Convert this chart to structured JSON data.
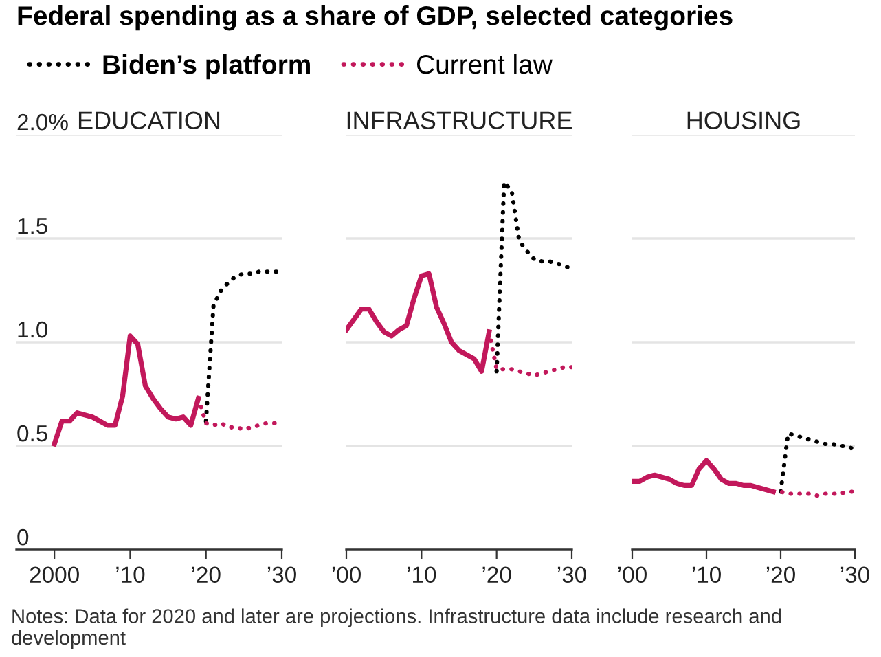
{
  "chart_data": [
    {
      "type": "line",
      "title": "Federal spending as a share of GDP, selected categories",
      "subtitle": "EDUCATION",
      "legend": "top",
      "grid": "y",
      "tick_labels": "xy",
      "xlim": [
        1995,
        2030
      ],
      "xticks": [
        {
          "value": 2000,
          "label": "2000"
        },
        {
          "value": 2010,
          "label": "’10"
        },
        {
          "value": 2020,
          "label": "’20"
        },
        {
          "value": 2030,
          "label": "’30"
        }
      ],
      "ylim": [
        0,
        2.0
      ],
      "yticks": [
        0,
        0.5,
        {
          "value": 1.0,
          "label": "1.0"
        },
        1.5,
        {
          "value": 2.0,
          "label": "2.0%"
        }
      ],
      "annotations": [
        "Notes: Data for 2020 and later are projections. Infrastructure data include research and development"
      ],
      "series": [
        {
          "color": "#c2185b",
          "line_style": "solid",
          "x": [
            2000,
            2001,
            2002,
            2003,
            2004,
            2005,
            2006,
            2007,
            2008,
            2009,
            2010,
            2011,
            2012,
            2013,
            2014,
            2015,
            2016,
            2017,
            2018,
            2019
          ],
          "values": [
            0.51,
            0.62,
            0.62,
            0.66,
            0.65,
            0.64,
            0.62,
            0.6,
            0.6,
            0.74,
            1.03,
            0.99,
            0.79,
            0.73,
            0.68,
            0.64,
            0.63,
            0.64,
            0.6,
            0.73
          ]
        },
        {
          "name": "Biden’s platform",
          "color": "#000000",
          "line_style": "dotted",
          "x": [
            2020,
            2021,
            2022,
            2023,
            2024,
            2025,
            2026,
            2027,
            2028,
            2029,
            2030
          ],
          "values": [
            0.62,
            1.18,
            1.25,
            1.29,
            1.32,
            1.33,
            1.33,
            1.34,
            1.34,
            1.34,
            1.34
          ]
        },
        {
          "name": "Current law",
          "color": "#c2185b",
          "line_style": "dotted",
          "x": [
            2019,
            2020,
            2021,
            2022,
            2023,
            2024,
            2025,
            2026,
            2027,
            2028,
            2029,
            2030
          ],
          "values": [
            0.73,
            0.61,
            0.6,
            0.61,
            0.59,
            0.59,
            0.58,
            0.59,
            0.6,
            0.61,
            0.61,
            0.61
          ]
        }
      ]
    },
    {
      "type": "line",
      "subtitle": "INFRASTRUCTURE",
      "grid": "y",
      "tick_labels": "x",
      "xlim": [
        2000,
        2030
      ],
      "xticks": [
        {
          "value": 2000,
          "label": "’00"
        },
        {
          "value": 2010,
          "label": "’10"
        },
        {
          "value": 2020,
          "label": "’20"
        },
        {
          "value": 2030,
          "label": "’30"
        }
      ],
      "ylim": [
        0,
        2.0
      ],
      "yticks": [
        0,
        0.5,
        1.0,
        1.5,
        2.0
      ],
      "series": [
        {
          "color": "#c2185b",
          "line_style": "solid",
          "x": [
            2000,
            2001,
            2002,
            2003,
            2004,
            2005,
            2006,
            2007,
            2008,
            2009,
            2010,
            2011,
            2012,
            2013,
            2014,
            2015,
            2016,
            2017,
            2018,
            2019
          ],
          "values": [
            1.06,
            1.11,
            1.16,
            1.16,
            1.1,
            1.05,
            1.03,
            1.06,
            1.08,
            1.21,
            1.32,
            1.33,
            1.17,
            1.09,
            1.0,
            0.96,
            0.94,
            0.92,
            0.86,
            1.05
          ]
        },
        {
          "color": "#000000",
          "line_style": "dotted",
          "x": [
            2020,
            2021,
            2022,
            2023,
            2024,
            2025,
            2026,
            2027,
            2028,
            2029,
            2030
          ],
          "values": [
            0.86,
            1.77,
            1.73,
            1.49,
            1.44,
            1.4,
            1.39,
            1.39,
            1.38,
            1.37,
            1.35
          ]
        },
        {
          "color": "#c2185b",
          "line_style": "dotted",
          "x": [
            2019,
            2020,
            2021,
            2022,
            2023,
            2024,
            2025,
            2026,
            2027,
            2028,
            2029,
            2030
          ],
          "values": [
            1.05,
            0.87,
            0.87,
            0.87,
            0.86,
            0.85,
            0.84,
            0.85,
            0.86,
            0.87,
            0.88,
            0.88
          ]
        }
      ]
    },
    {
      "type": "line",
      "subtitle": "HOUSING",
      "grid": "y",
      "tick_labels": "x",
      "xlim": [
        2000,
        2030
      ],
      "xticks": [
        {
          "value": 2000,
          "label": "’00"
        },
        {
          "value": 2010,
          "label": "’10"
        },
        {
          "value": 2020,
          "label": "’20"
        },
        {
          "value": 2030,
          "label": "’30"
        }
      ],
      "ylim": [
        0,
        2.0
      ],
      "yticks": [
        0,
        0.5,
        1.0,
        1.5,
        2.0
      ],
      "series": [
        {
          "color": "#c2185b",
          "line_style": "solid",
          "x": [
            2000,
            2001,
            2002,
            2003,
            2004,
            2005,
            2006,
            2007,
            2008,
            2009,
            2010,
            2011,
            2012,
            2013,
            2014,
            2015,
            2016,
            2017,
            2018,
            2019
          ],
          "values": [
            0.33,
            0.33,
            0.35,
            0.36,
            0.35,
            0.34,
            0.32,
            0.31,
            0.31,
            0.39,
            0.43,
            0.39,
            0.34,
            0.32,
            0.32,
            0.31,
            0.31,
            0.3,
            0.29,
            0.28
          ]
        },
        {
          "color": "#000000",
          "line_style": "dotted",
          "x": [
            2020,
            2021,
            2022,
            2023,
            2024,
            2025,
            2026,
            2027,
            2028,
            2029,
            2030
          ],
          "values": [
            0.28,
            0.56,
            0.55,
            0.54,
            0.53,
            0.52,
            0.51,
            0.51,
            0.5,
            0.5,
            0.48
          ]
        },
        {
          "color": "#c2185b",
          "line_style": "dotted",
          "x": [
            2019,
            2020,
            2021,
            2022,
            2023,
            2024,
            2025,
            2026,
            2027,
            2028,
            2029,
            2030
          ],
          "values": [
            0.28,
            0.28,
            0.27,
            0.27,
            0.27,
            0.27,
            0.26,
            0.27,
            0.27,
            0.27,
            0.28,
            0.28
          ]
        }
      ]
    }
  ]
}
